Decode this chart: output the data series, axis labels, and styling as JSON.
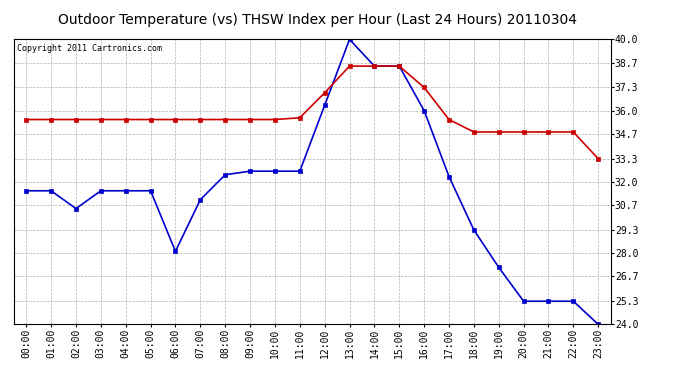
{
  "title": "Outdoor Temperature (vs) THSW Index per Hour (Last 24 Hours) 20110304",
  "copyright": "Copyright 2011 Cartronics.com",
  "hours": [
    "00:00",
    "01:00",
    "02:00",
    "03:00",
    "04:00",
    "05:00",
    "06:00",
    "07:00",
    "08:00",
    "09:00",
    "10:00",
    "11:00",
    "12:00",
    "13:00",
    "14:00",
    "15:00",
    "16:00",
    "17:00",
    "18:00",
    "19:00",
    "20:00",
    "21:00",
    "22:00",
    "23:00"
  ],
  "outdoor_temp": [
    31.5,
    31.5,
    30.5,
    31.5,
    31.5,
    31.5,
    28.1,
    31.0,
    32.4,
    32.6,
    32.6,
    32.6,
    36.3,
    40.0,
    38.5,
    38.5,
    36.0,
    32.3,
    29.3,
    27.2,
    25.3,
    25.3,
    25.3,
    24.0
  ],
  "thsw_index": [
    35.5,
    35.5,
    35.5,
    35.5,
    35.5,
    35.5,
    35.5,
    35.5,
    35.5,
    35.5,
    35.5,
    35.6,
    37.0,
    38.5,
    38.5,
    38.5,
    37.3,
    35.5,
    34.8,
    34.8,
    34.8,
    34.8,
    34.8,
    33.3
  ],
  "temp_color": "#0000cc",
  "thsw_color": "#cc0000",
  "bg_color": "#ffffff",
  "grid_color": "#aaaaaa",
  "ylim_min": 24.0,
  "ylim_max": 40.0,
  "yticks": [
    24.0,
    25.3,
    26.7,
    28.0,
    29.3,
    30.7,
    32.0,
    33.3,
    34.7,
    36.0,
    37.3,
    38.7,
    40.0
  ],
  "title_fontsize": 10,
  "copyright_fontsize": 6,
  "axis_fontsize": 7,
  "marker_size": 3,
  "linewidth": 1.2
}
